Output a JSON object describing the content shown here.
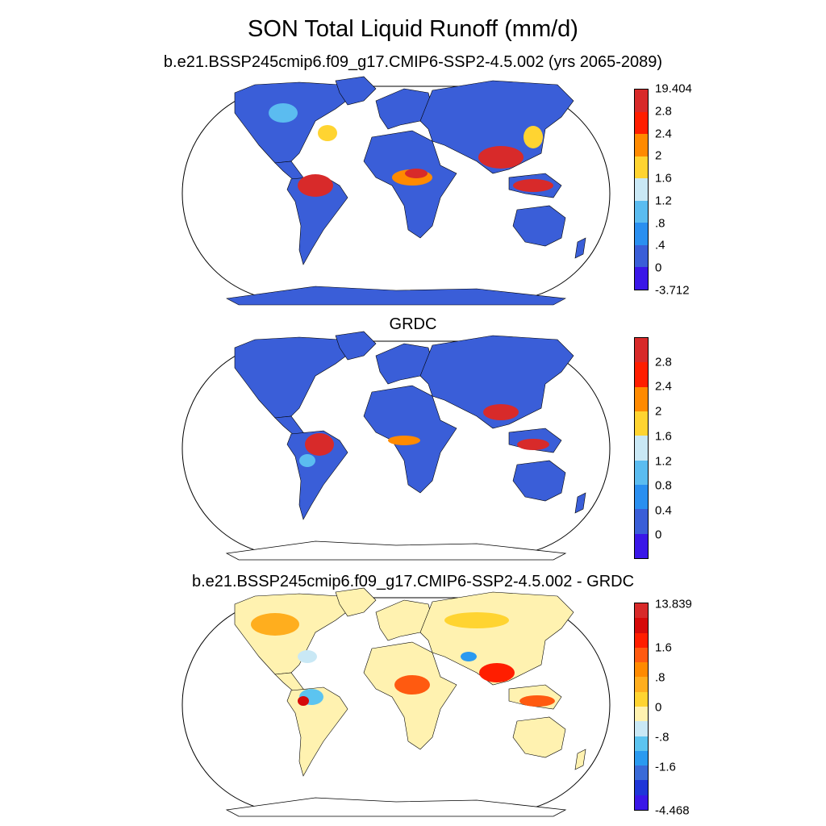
{
  "title": "SON Total Liquid Runoff (mm/d)",
  "panels": [
    {
      "title": "b.e21.BSSP245cmip6.f09_g17.CMIP6-SSP2-4.5.002 (yrs 2065-2089)",
      "colorbar": {
        "colors": [
          "#3a17e8",
          "#3a5ed8",
          "#2a8ff0",
          "#5bbcf0",
          "#c9e8f5",
          "#ffd431",
          "#ff8a00",
          "#ff1e00",
          "#d82a2a"
        ],
        "labels": [
          "19.404",
          "2.8",
          "2.4",
          "2",
          "1.6",
          "1.2",
          ".8",
          ".4",
          "0",
          "-3.712"
        ]
      }
    },
    {
      "title": "GRDC",
      "colorbar": {
        "colors": [
          "#3a17e8",
          "#3a5ed8",
          "#2a8ff0",
          "#5bbcf0",
          "#c9e8f5",
          "#ffd431",
          "#ff8a00",
          "#ff1e00",
          "#d82a2a"
        ],
        "labels": [
          "2.8",
          "2.4",
          "2",
          "1.6",
          "1.2",
          "0.8",
          "0.4",
          "0"
        ]
      }
    },
    {
      "title": "b.e21.BSSP245cmip6.f09_g17.CMIP6-SSP2-4.5.002 - GRDC",
      "colorbar": {
        "colors": [
          "#3a17e8",
          "#1f36d8",
          "#3a6bd8",
          "#2a9af0",
          "#5cc4f0",
          "#c9e8f5",
          "#fff2b0",
          "#ffd431",
          "#ffae1e",
          "#ff8a00",
          "#ff5a10",
          "#ff1e00",
          "#d60a0a",
          "#d82a2a"
        ],
        "labels": [
          "13.839",
          "1.6",
          ".8",
          "0",
          "-.8",
          "-1.6",
          "-4.468"
        ]
      }
    }
  ]
}
